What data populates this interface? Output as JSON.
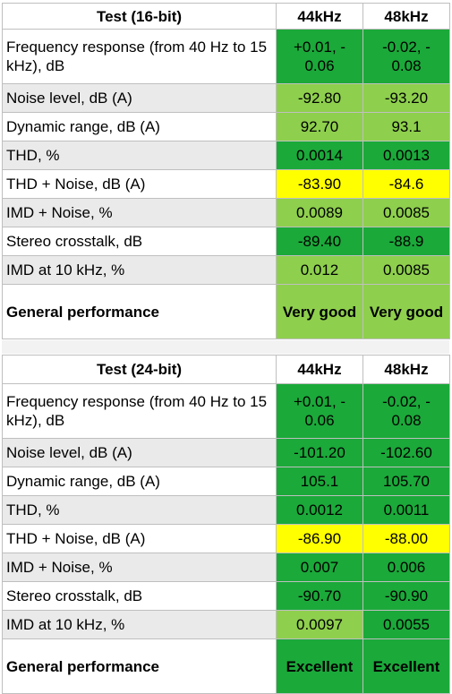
{
  "colors": {
    "green": "#1ba93a",
    "light_green": "#8ecf4d",
    "yellow": "#ffff00",
    "label_shade": "#eaeaea"
  },
  "table16": {
    "header": [
      "Test (16-bit)",
      "44kHz",
      "48kHz"
    ],
    "rows": [
      {
        "label": "Frequency response (from 40 Hz to 15 kHz), dB",
        "v44": "+0.01, - 0.06",
        "v48": "-0.02, - 0.08",
        "c44": "green",
        "c48": "green"
      },
      {
        "label": "Noise level, dB (A)",
        "v44": "-92.80",
        "v48": "-93.20",
        "c44": "light_green",
        "c48": "light_green"
      },
      {
        "label": "Dynamic range, dB (A)",
        "v44": "92.70",
        "v48": "93.1",
        "c44": "light_green",
        "c48": "light_green"
      },
      {
        "label": "THD, %",
        "v44": "0.0014",
        "v48": "0.0013",
        "c44": "green",
        "c48": "green"
      },
      {
        "label": "THD + Noise, dB (A)",
        "v44": "-83.90",
        "v48": "-84.6",
        "c44": "yellow",
        "c48": "yellow"
      },
      {
        "label": "IMD + Noise, %",
        "v44": "0.0089",
        "v48": "0.0085",
        "c44": "light_green",
        "c48": "light_green"
      },
      {
        "label": "Stereo crosstalk, dB",
        "v44": "-89.40",
        "v48": "-88.9",
        "c44": "green",
        "c48": "green"
      },
      {
        "label": "IMD at 10 kHz, %",
        "v44": "0.012",
        "v48": "0.0085",
        "c44": "light_green",
        "c48": "light_green"
      },
      {
        "label": "General performance",
        "v44": "Very good",
        "v48": "Very good",
        "c44": "light_green",
        "c48": "light_green"
      }
    ]
  },
  "table24": {
    "header": [
      "Test (24-bit)",
      "44kHz",
      "48kHz"
    ],
    "rows": [
      {
        "label": "Frequency response (from 40 Hz to 15 kHz), dB",
        "v44": "+0.01, - 0.06",
        "v48": "-0.02, - 0.08",
        "c44": "green",
        "c48": "green"
      },
      {
        "label": "Noise level, dB (A)",
        "v44": "-101.20",
        "v48": "-102.60",
        "c44": "green",
        "c48": "green"
      },
      {
        "label": "Dynamic range, dB (A)",
        "v44": "105.1",
        "v48": "105.70",
        "c44": "green",
        "c48": "green"
      },
      {
        "label": "THD, %",
        "v44": "0.0012",
        "v48": "0.0011",
        "c44": "green",
        "c48": "green"
      },
      {
        "label": "THD + Noise, dB (A)",
        "v44": "-86.90",
        "v48": "-88.00",
        "c44": "yellow",
        "c48": "yellow"
      },
      {
        "label": "IMD + Noise, %",
        "v44": "0.007",
        "v48": "0.006",
        "c44": "green",
        "c48": "green"
      },
      {
        "label": "Stereo crosstalk, dB",
        "v44": "-90.70",
        "v48": "-90.90",
        "c44": "green",
        "c48": "green"
      },
      {
        "label": "IMD at 10 kHz, %",
        "v44": "0.0097",
        "v48": "0.0055",
        "c44": "light_green",
        "c48": "green"
      },
      {
        "label": "General performance",
        "v44": "Excellent",
        "v48": "Excellent",
        "c44": "green",
        "c48": "green"
      }
    ]
  }
}
